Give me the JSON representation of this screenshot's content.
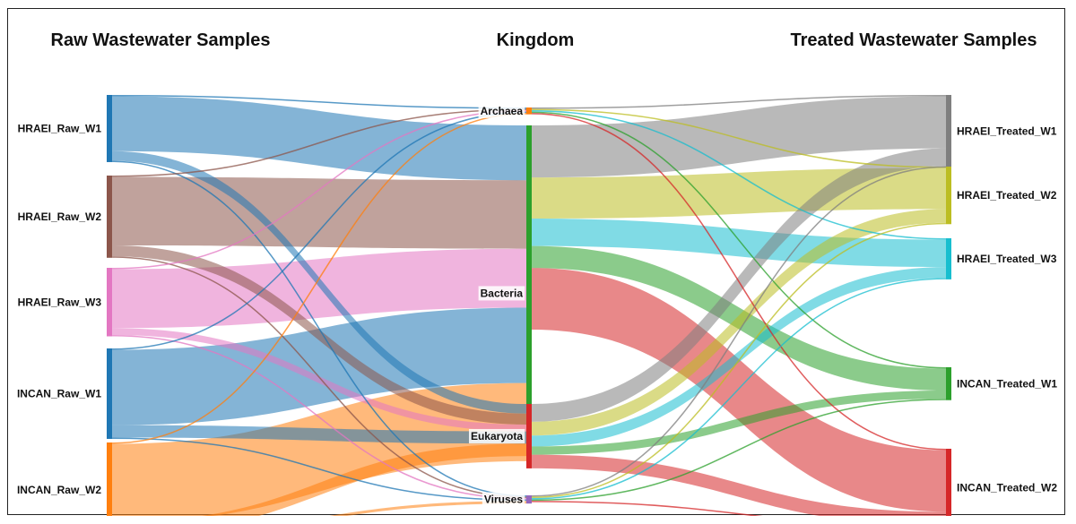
{
  "headings": {
    "left": "Raw Wastewater Samples",
    "middle": "Kingdom",
    "right": "Treated Wastewater Samples"
  },
  "nodes": {
    "raw": [
      {
        "label": "HRAEI_Raw_W1",
        "color": "#1f77b4"
      },
      {
        "label": "HRAEI_Raw_W2",
        "color": "#8c564b"
      },
      {
        "label": "HRAEI_Raw_W3",
        "color": "#e377c2"
      },
      {
        "label": "INCAN_Raw_W1",
        "color": "#1f77b4"
      },
      {
        "label": "INCAN_Raw_W2",
        "color": "#ff7f0e"
      }
    ],
    "kingdom": [
      {
        "label": "Archaea",
        "color": "#ff7f0e"
      },
      {
        "label": "Bacteria",
        "color": "#2ca02c"
      },
      {
        "label": "Eukaryota",
        "color": "#d62728"
      },
      {
        "label": "Viruses",
        "color": "#9467bd"
      }
    ],
    "treated": [
      {
        "label": "HRAEI_Treated_W1",
        "color": "#7f7f7f"
      },
      {
        "label": "HRAEI_Treated_W2",
        "color": "#bcbd22"
      },
      {
        "label": "HRAEI_Treated_W3",
        "color": "#17becf"
      },
      {
        "label": "INCAN_Treated_W1",
        "color": "#2ca02c"
      },
      {
        "label": "INCAN_Treated_W2",
        "color": "#d62728"
      }
    ]
  },
  "link_colors": {
    "HRAEI_Raw_W1": "#1f77b4",
    "HRAEI_Raw_W2": "#8c564b",
    "HRAEI_Raw_W3": "#e377c2",
    "INCAN_Raw_W1": "#1f77b4",
    "INCAN_Raw_W2": "#ff7f0e",
    "HRAEI_Treated_W1": "#7f7f7f",
    "HRAEI_Treated_W2": "#bcbd22",
    "HRAEI_Treated_W3": "#17becf",
    "INCAN_Treated_W1": "#2ca02c",
    "INCAN_Treated_W2": "#d62728"
  },
  "flows": [
    {
      "source": "HRAEI_Raw_W1",
      "target": "Bacteria",
      "value": 40
    },
    {
      "source": "HRAEI_Raw_W1",
      "target": "Eukaryota",
      "value": 7
    },
    {
      "source": "HRAEI_Raw_W1",
      "target": "Archaea",
      "value": 1
    },
    {
      "source": "HRAEI_Raw_W1",
      "target": "Viruses",
      "value": 1
    },
    {
      "source": "HRAEI_Raw_W2",
      "target": "Bacteria",
      "value": 50
    },
    {
      "source": "HRAEI_Raw_W2",
      "target": "Eukaryota",
      "value": 8
    },
    {
      "source": "HRAEI_Raw_W2",
      "target": "Archaea",
      "value": 1
    },
    {
      "source": "HRAEI_Raw_W2",
      "target": "Viruses",
      "value": 1
    },
    {
      "source": "HRAEI_Raw_W3",
      "target": "Bacteria",
      "value": 43
    },
    {
      "source": "HRAEI_Raw_W3",
      "target": "Eukaryota",
      "value": 5
    },
    {
      "source": "HRAEI_Raw_W3",
      "target": "Archaea",
      "value": 1
    },
    {
      "source": "HRAEI_Raw_W3",
      "target": "Viruses",
      "value": 1
    },
    {
      "source": "INCAN_Raw_W1",
      "target": "Bacteria",
      "value": 55
    },
    {
      "source": "INCAN_Raw_W1",
      "target": "Eukaryota",
      "value": 9
    },
    {
      "source": "INCAN_Raw_W1",
      "target": "Archaea",
      "value": 1
    },
    {
      "source": "INCAN_Raw_W1",
      "target": "Viruses",
      "value": 1
    },
    {
      "source": "INCAN_Raw_W2",
      "target": "Bacteria",
      "value": 57
    },
    {
      "source": "INCAN_Raw_W2",
      "target": "Eukaryota",
      "value": 9
    },
    {
      "source": "INCAN_Raw_W2",
      "target": "Archaea",
      "value": 1
    },
    {
      "source": "INCAN_Raw_W2",
      "target": "Viruses",
      "value": 2
    },
    {
      "source": "Archaea",
      "target": "HRAEI_Treated_W1",
      "value": 1
    },
    {
      "source": "Archaea",
      "target": "HRAEI_Treated_W2",
      "value": 1
    },
    {
      "source": "Archaea",
      "target": "HRAEI_Treated_W3",
      "value": 1
    },
    {
      "source": "Archaea",
      "target": "INCAN_Treated_W1",
      "value": 1
    },
    {
      "source": "Archaea",
      "target": "INCAN_Treated_W2",
      "value": 1
    },
    {
      "source": "Bacteria",
      "target": "HRAEI_Treated_W1",
      "value": 38
    },
    {
      "source": "Bacteria",
      "target": "HRAEI_Treated_W2",
      "value": 30
    },
    {
      "source": "Bacteria",
      "target": "HRAEI_Treated_W3",
      "value": 20
    },
    {
      "source": "Bacteria",
      "target": "INCAN_Treated_W1",
      "value": 16
    },
    {
      "source": "Bacteria",
      "target": "INCAN_Treated_W2",
      "value": 45
    },
    {
      "source": "Eukaryota",
      "target": "HRAEI_Treated_W1",
      "value": 13
    },
    {
      "source": "Eukaryota",
      "target": "HRAEI_Treated_W2",
      "value": 10
    },
    {
      "source": "Eukaryota",
      "target": "HRAEI_Treated_W3",
      "value": 8
    },
    {
      "source": "Eukaryota",
      "target": "INCAN_Treated_W1",
      "value": 6
    },
    {
      "source": "Eukaryota",
      "target": "INCAN_Treated_W2",
      "value": 10
    },
    {
      "source": "Viruses",
      "target": "HRAEI_Treated_W1",
      "value": 1
    },
    {
      "source": "Viruses",
      "target": "HRAEI_Treated_W2",
      "value": 1
    },
    {
      "source": "Viruses",
      "target": "HRAEI_Treated_W3",
      "value": 1
    },
    {
      "source": "Viruses",
      "target": "INCAN_Treated_W1",
      "value": 1
    },
    {
      "source": "Viruses",
      "target": "INCAN_Treated_W2",
      "value": 1
    }
  ]
}
